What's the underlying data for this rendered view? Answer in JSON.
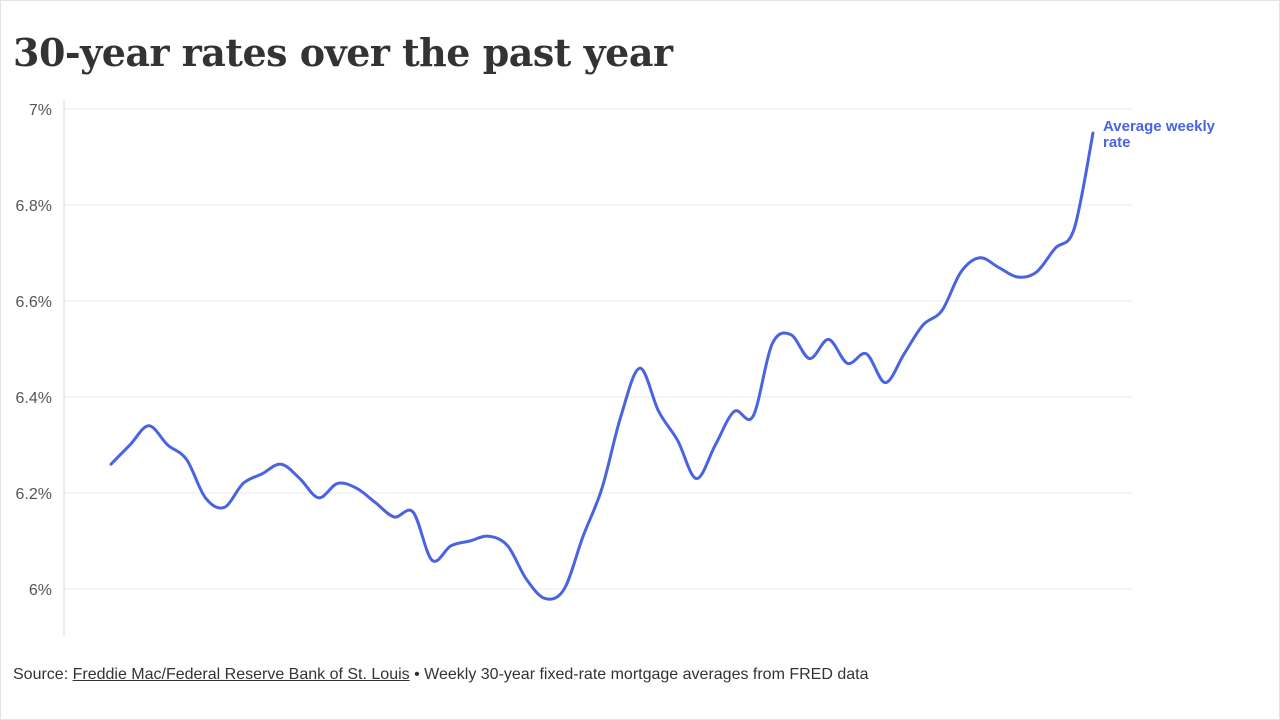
{
  "header": {
    "title": "30-year rates over the past year"
  },
  "footer": {
    "source_prefix": "Source:",
    "source_link": "Freddie Mac/Federal Reserve Bank of St. Louis",
    "separator": "•",
    "note": "Weekly 30-year fixed-rate mortgage averages from FRED data"
  },
  "colors": {
    "line": "#4a63e0",
    "grid": "#ebebeb",
    "axis_text": "#555555",
    "title_text": "#333333"
  },
  "chart_data": {
    "type": "line",
    "title": "30-year rates over the past year",
    "xlabel": "",
    "ylabel": "",
    "ylim": [
      5.9,
      7.0
    ],
    "yticks": [
      6.0,
      6.2,
      6.4,
      6.6,
      6.8,
      7.0
    ],
    "ytick_labels": [
      "6%",
      "6.2%",
      "6.4%",
      "6.6%",
      "6.8%",
      "7%"
    ],
    "grid": true,
    "legend": "none",
    "series": [
      {
        "name": "Average weekly rate",
        "label_lines": [
          "Average weekly",
          "rate"
        ],
        "values": [
          6.26,
          6.3,
          6.34,
          6.3,
          6.27,
          6.19,
          6.17,
          6.22,
          6.24,
          6.26,
          6.23,
          6.19,
          6.22,
          6.21,
          6.18,
          6.15,
          6.16,
          6.06,
          6.09,
          6.1,
          6.11,
          6.09,
          6.02,
          5.98,
          6.0,
          6.11,
          6.21,
          6.36,
          6.46,
          6.37,
          6.31,
          6.23,
          6.3,
          6.37,
          6.36,
          6.51,
          6.53,
          6.48,
          6.52,
          6.47,
          6.49,
          6.43,
          6.49,
          6.55,
          6.58,
          6.66,
          6.69,
          6.67,
          6.65,
          6.66,
          6.71,
          6.75,
          6.95
        ]
      }
    ]
  }
}
